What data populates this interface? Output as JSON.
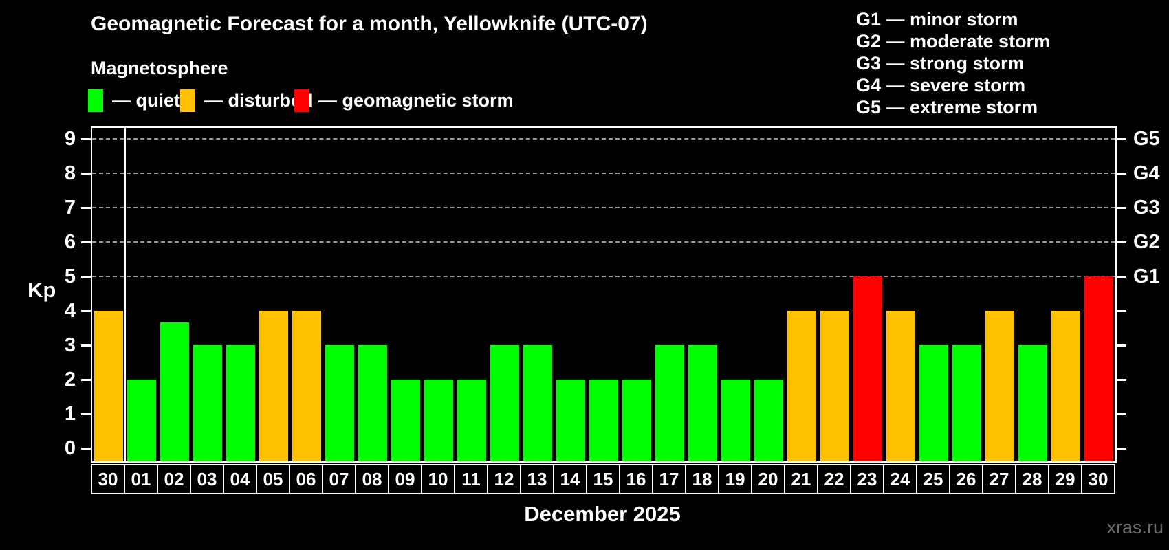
{
  "title": "Geomagnetic Forecast for a month, Yellowknife (UTC-07)",
  "subtitle": "Magnetosphere",
  "legend": {
    "items": [
      {
        "name": "quiet",
        "label": "— quiet",
        "color": "#00ff00"
      },
      {
        "name": "disturbed",
        "label": "— disturbed",
        "color": "#ffc000"
      },
      {
        "name": "storm",
        "label": "— geomagnetic storm",
        "color": "#ff0000"
      }
    ]
  },
  "g_scale_legend": {
    "items": [
      "G1 — minor storm",
      "G2 — moderate storm",
      "G3 — strong storm",
      "G4 — severe storm",
      "G5 — extreme storm"
    ]
  },
  "watermark": "xras.ru",
  "chart_data": {
    "type": "bar",
    "title": "Geomagnetic Forecast for a month, Yellowknife (UTC-07)",
    "xlabel": "December 2025",
    "ylabel": "Kp",
    "ylim": [
      0,
      9.5
    ],
    "grid": "dashed horizontal lines at Kp 5 to 9",
    "legend_position": "top-left and top-right",
    "categories": [
      "30",
      "01",
      "02",
      "03",
      "04",
      "05",
      "06",
      "07",
      "08",
      "09",
      "10",
      "11",
      "12",
      "13",
      "14",
      "15",
      "16",
      "17",
      "18",
      "19",
      "20",
      "21",
      "22",
      "23",
      "24",
      "25",
      "26",
      "27",
      "28",
      "29",
      "30"
    ],
    "values": [
      4,
      2,
      3.67,
      3,
      3,
      4,
      4,
      3,
      3,
      2,
      2,
      2,
      3,
      3,
      2,
      2,
      2,
      3,
      3,
      2,
      2,
      4,
      4,
      5,
      4,
      3,
      3,
      4,
      3,
      4,
      5
    ],
    "statuses": [
      "disturbed",
      "quiet",
      "quiet",
      "quiet",
      "quiet",
      "disturbed",
      "disturbed",
      "quiet",
      "quiet",
      "quiet",
      "quiet",
      "quiet",
      "quiet",
      "quiet",
      "quiet",
      "quiet",
      "quiet",
      "quiet",
      "quiet",
      "quiet",
      "quiet",
      "disturbed",
      "disturbed",
      "storm",
      "disturbed",
      "quiet",
      "quiet",
      "disturbed",
      "quiet",
      "disturbed",
      "storm"
    ],
    "status_colors": {
      "quiet": "#00ff00",
      "disturbed": "#ffc000",
      "storm": "#ff0000"
    },
    "y_ticks": [
      0,
      1,
      2,
      3,
      4,
      5,
      6,
      7,
      8,
      9
    ],
    "gridlines": [
      5,
      6,
      7,
      8,
      9
    ],
    "right_axis_labels": [
      {
        "kp": 5,
        "label": "G1"
      },
      {
        "kp": 6,
        "label": "G2"
      },
      {
        "kp": 7,
        "label": "G3"
      },
      {
        "kp": 8,
        "label": "G4"
      },
      {
        "kp": 9,
        "label": "G5"
      }
    ],
    "separator_after_index": 0
  }
}
